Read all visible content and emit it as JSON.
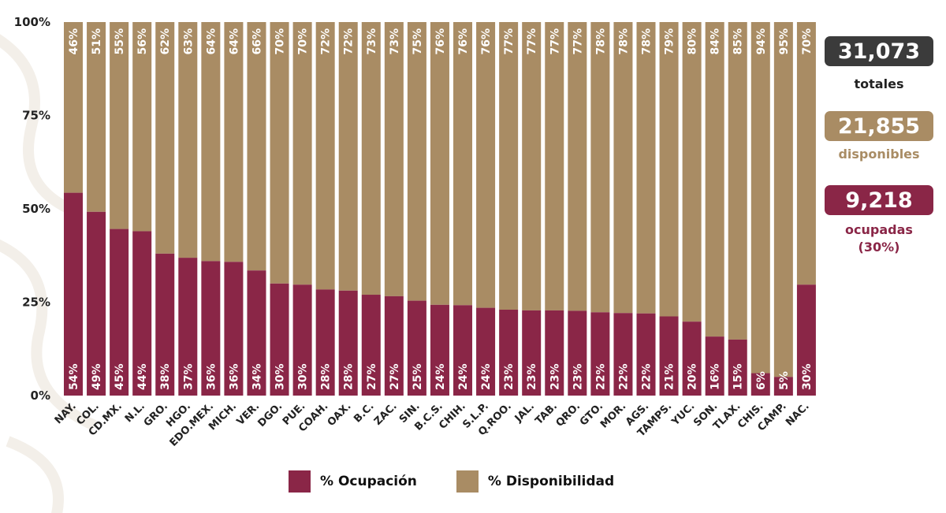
{
  "colors": {
    "ocupacion": "#8a2647",
    "disponibilidad": "#a98c64",
    "totales_box": "#3b3b3b",
    "disponibles_box": "#a98c64",
    "ocupadas_box": "#8a2647"
  },
  "summary": {
    "totales": {
      "value": "31,073",
      "label": "totales"
    },
    "disponibles": {
      "value": "21,855",
      "label": "disponibles"
    },
    "ocupadas": {
      "value": "9,218",
      "label": "ocupadas",
      "sub": "(30%)"
    }
  },
  "legend": {
    "ocupacion": "% Ocupación",
    "disponibilidad": "% Disponibilidad"
  },
  "chart_data": {
    "type": "bar",
    "stacked": true,
    "percent": true,
    "categories": [
      "NAY.",
      "COL.",
      "CD.MX.",
      "N.L.",
      "GRO.",
      "HGO.",
      "EDO.MEX.",
      "MICH.",
      "VER.",
      "DGO.",
      "PUE.",
      "COAH.",
      "OAX.",
      "B.C.",
      "ZAC.",
      "SIN.",
      "B.C.S.",
      "CHIH.",
      "S.L.P.",
      "Q.ROO.",
      "JAL.",
      "TAB.",
      "QRO.",
      "GTO.",
      "MOR.",
      "AGS.",
      "TAMPS.",
      "YUC.",
      "SON.",
      "TLAX.",
      "CHIS.",
      "CAMP.",
      "NAC."
    ],
    "series": [
      {
        "name": "% Ocupación",
        "values": [
          54,
          49,
          45,
          44,
          38,
          37,
          36,
          36,
          34,
          30,
          30,
          28,
          28,
          27,
          27,
          25,
          24,
          24,
          24,
          23,
          23,
          23,
          23,
          22,
          22,
          22,
          21,
          20,
          16,
          15,
          6,
          5,
          30
        ],
        "heights": [
          54.3,
          49.2,
          44.6,
          44.0,
          38.0,
          36.9,
          36.0,
          35.8,
          33.5,
          30.0,
          29.7,
          28.4,
          28.1,
          27.0,
          26.6,
          25.4,
          24.3,
          24.2,
          23.5,
          23.0,
          22.8,
          22.8,
          22.7,
          22.3,
          22.1,
          22.0,
          21.2,
          19.8,
          15.8,
          15.0,
          6,
          5,
          29.7
        ],
        "labels": [
          "54%",
          "49%",
          "45%",
          "44%",
          "38%",
          "37%",
          "36%",
          "36%",
          "34%",
          "30%",
          "30%",
          "28%",
          "28%",
          "27%",
          "27%",
          "25%",
          "24%",
          "24%",
          "24%",
          "23%",
          "23%",
          "23%",
          "23%",
          "22%",
          "22%",
          "22%",
          "21%",
          "20%",
          "16%",
          "15%",
          "6%",
          "5%",
          "30%"
        ]
      },
      {
        "name": "% Disponibilidad",
        "values": [
          46,
          51,
          55,
          56,
          62,
          63,
          64,
          64,
          66,
          70,
          70,
          72,
          72,
          73,
          73,
          75,
          76,
          76,
          76,
          77,
          77,
          77,
          77,
          78,
          78,
          78,
          79,
          80,
          84,
          85,
          94,
          95,
          70
        ],
        "labels": [
          "46%",
          "51%",
          "55%",
          "56%",
          "62%",
          "63%",
          "64%",
          "64%",
          "66%",
          "70%",
          "70%",
          "72%",
          "72%",
          "73%",
          "73%",
          "75%",
          "76%",
          "76%",
          "76%",
          "77%",
          "77%",
          "77%",
          "77%",
          "78%",
          "78%",
          "78%",
          "79%",
          "80%",
          "84%",
          "85%",
          "94%",
          "95%",
          "70%"
        ]
      }
    ],
    "yticks": [
      "0%",
      "25%",
      "50%",
      "75%",
      "100%"
    ],
    "ylim": [
      0,
      100
    ],
    "legend_position": "bottom"
  }
}
